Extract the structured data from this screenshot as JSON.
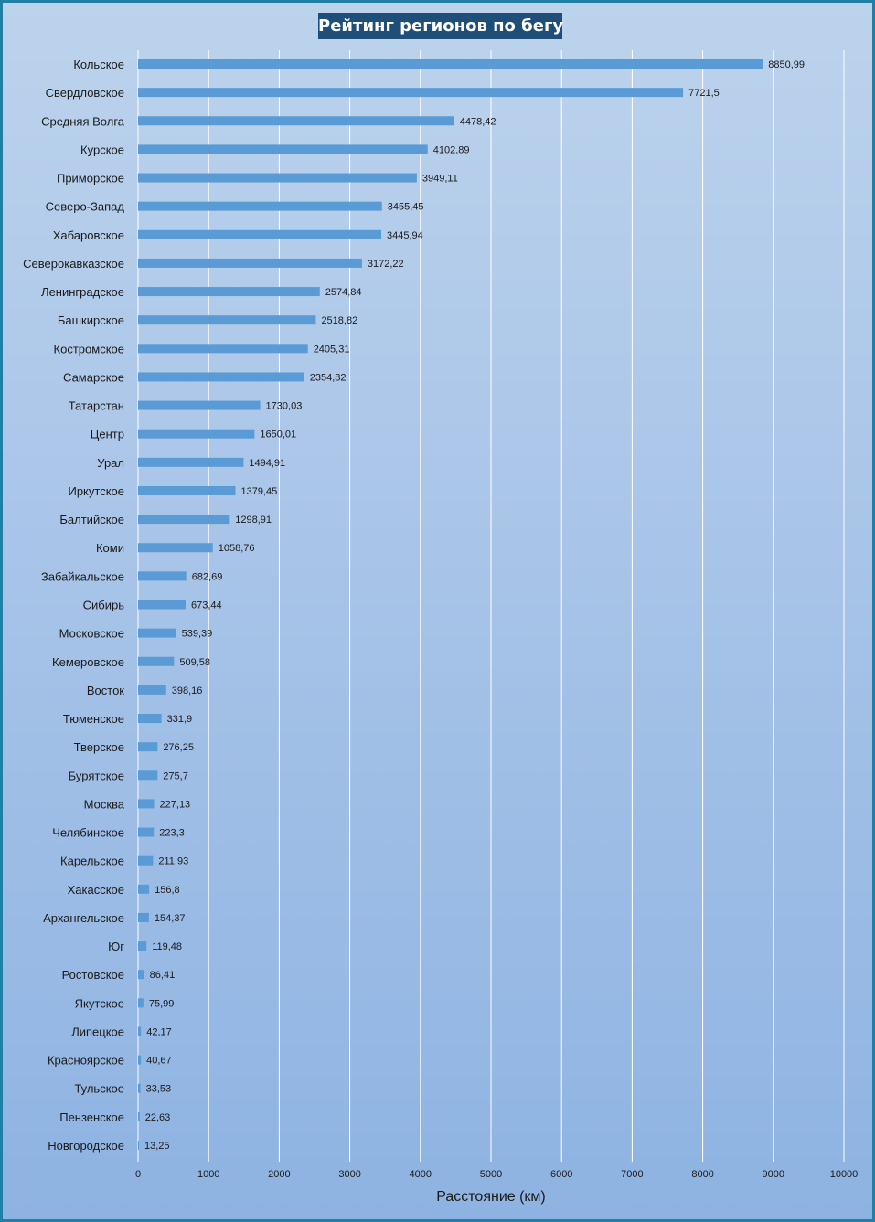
{
  "chart_data": {
    "type": "bar",
    "orientation": "horizontal",
    "title": "Рейтинг регионов по бегу",
    "xlabel": "Расстояние (км)",
    "ylabel": "",
    "xlim": [
      0,
      10000
    ],
    "xticks": [
      "0",
      "1000",
      "2000",
      "3000",
      "4000",
      "5000",
      "6000",
      "7000",
      "8000",
      "9000",
      "10000"
    ],
    "grid": "vertical",
    "bar_color": "#5b9bd5",
    "categories": [
      "Кольское",
      "Свердловское",
      "Средняя Волга",
      "Курское",
      "Приморское",
      "Северо-Запад",
      "Хабаровское",
      "Северокавказское",
      "Ленинградское",
      "Башкирское",
      "Костромское",
      "Самарское",
      "Татарстан",
      "Центр",
      "Урал",
      "Иркутское",
      "Балтийское",
      "Коми",
      "Забайкальское",
      "Сибирь",
      "Московское",
      "Кемеровское",
      "Восток",
      "Тюменское",
      "Тверское",
      "Бурятское",
      "Москва",
      "Челябинское",
      "Карельское",
      "Хакасское",
      "Архангельское",
      "Юг",
      "Ростовское",
      "Якутское",
      "Липецкое",
      "Красноярское",
      "Тульское",
      "Пензенское",
      "Новгородское"
    ],
    "values": [
      8850.99,
      7721.5,
      4478.42,
      4102.89,
      3949.11,
      3455.45,
      3445.94,
      3172.22,
      2574.84,
      2518.82,
      2405.31,
      2354.82,
      1730.03,
      1650.01,
      1494.91,
      1379.45,
      1298.91,
      1058.76,
      682.69,
      673.44,
      539.39,
      509.58,
      398.16,
      331.9,
      276.25,
      275.7,
      227.13,
      223.3,
      211.93,
      156.8,
      154.37,
      119.48,
      86.41,
      75.99,
      42.17,
      40.67,
      33.53,
      22.63,
      13.25
    ],
    "value_labels": [
      "8850,99",
      "7721,5",
      "4478,42",
      "4102,89",
      "3949,11",
      "3455,45",
      "3445,94",
      "3172,22",
      "2574,84",
      "2518,82",
      "2405,31",
      "2354,82",
      "1730,03",
      "1650,01",
      "1494,91",
      "1379,45",
      "1298,91",
      "1058,76",
      "682,69",
      "673,44",
      "539,39",
      "509,58",
      "398,16",
      "331,9",
      "276,25",
      "275,7",
      "227,13",
      "223,3",
      "211,93",
      "156,8",
      "154,37",
      "119,48",
      "86,41",
      "75,99",
      "42,17",
      "40,67",
      "33,53",
      "22,63",
      "13,25"
    ]
  }
}
